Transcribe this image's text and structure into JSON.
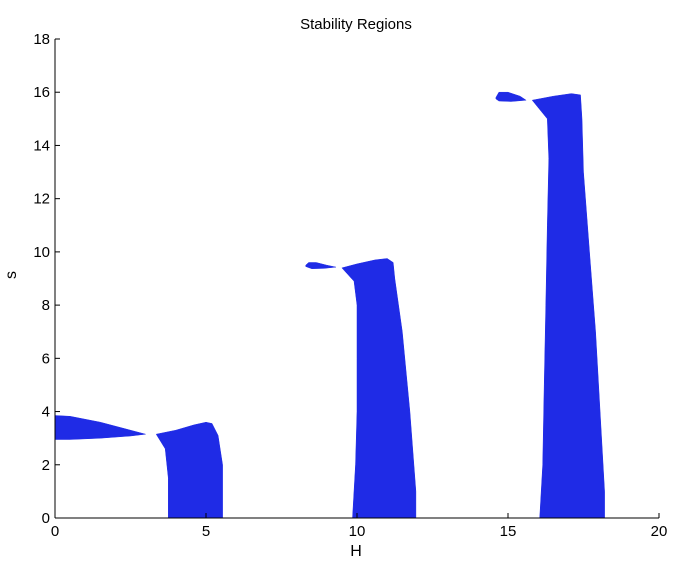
{
  "chart_data": {
    "type": "area",
    "title": "Stability Regions",
    "xlabel": "H",
    "ylabel": "s",
    "xlim": [
      0,
      20
    ],
    "ylim": [
      0,
      18
    ],
    "x_ticks": [
      "0",
      "5",
      "10",
      "15",
      "20"
    ],
    "y_ticks": [
      "0",
      "2",
      "4",
      "6",
      "8",
      "10",
      "12",
      "14",
      "16",
      "18"
    ],
    "grid": false,
    "fill_color": "#1f2be6",
    "regions": [
      {
        "points": [
          [
            0,
            2.95
          ],
          [
            0.5,
            2.95
          ],
          [
            1.5,
            3.0
          ],
          [
            2.5,
            3.08
          ],
          [
            3.0,
            3.15
          ],
          [
            2.5,
            3.3
          ],
          [
            1.5,
            3.6
          ],
          [
            0.5,
            3.82
          ],
          [
            0,
            3.85
          ]
        ]
      },
      {
        "points": [
          [
            3.75,
            0
          ],
          [
            3.75,
            1.5
          ],
          [
            3.65,
            2.6
          ],
          [
            3.35,
            3.15
          ],
          [
            4.0,
            3.3
          ],
          [
            4.6,
            3.5
          ],
          [
            5.0,
            3.6
          ],
          [
            5.2,
            3.55
          ],
          [
            5.4,
            3.1
          ],
          [
            5.55,
            2.0
          ],
          [
            5.55,
            0
          ]
        ]
      },
      {
        "points": [
          [
            9.85,
            0
          ],
          [
            9.95,
            2.0
          ],
          [
            10.0,
            4.0
          ],
          [
            10.0,
            6.0
          ],
          [
            10.0,
            8.0
          ],
          [
            9.9,
            8.9
          ],
          [
            9.5,
            9.4
          ],
          [
            10.0,
            9.55
          ],
          [
            10.6,
            9.7
          ],
          [
            11.0,
            9.75
          ],
          [
            11.2,
            9.6
          ],
          [
            11.25,
            9.0
          ],
          [
            11.5,
            7.0
          ],
          [
            11.75,
            4.0
          ],
          [
            11.95,
            1.0
          ],
          [
            11.95,
            0
          ]
        ]
      },
      {
        "points": [
          [
            8.3,
            9.5
          ],
          [
            8.4,
            9.6
          ],
          [
            8.65,
            9.6
          ],
          [
            9.0,
            9.5
          ],
          [
            9.3,
            9.43
          ],
          [
            8.9,
            9.38
          ],
          [
            8.5,
            9.37
          ],
          [
            8.3,
            9.45
          ]
        ]
      },
      {
        "points": [
          [
            16.05,
            0
          ],
          [
            16.15,
            2.0
          ],
          [
            16.2,
            5.0
          ],
          [
            16.25,
            8.0
          ],
          [
            16.3,
            11.0
          ],
          [
            16.35,
            13.5
          ],
          [
            16.3,
            15.0
          ],
          [
            15.8,
            15.7
          ],
          [
            16.5,
            15.85
          ],
          [
            17.1,
            15.95
          ],
          [
            17.4,
            15.9
          ],
          [
            17.45,
            15.0
          ],
          [
            17.5,
            13.0
          ],
          [
            17.7,
            10.0
          ],
          [
            17.9,
            7.0
          ],
          [
            18.05,
            4.0
          ],
          [
            18.2,
            1.0
          ],
          [
            18.2,
            0
          ]
        ]
      },
      {
        "points": [
          [
            14.6,
            15.8
          ],
          [
            14.7,
            16.0
          ],
          [
            15.0,
            16.0
          ],
          [
            15.4,
            15.85
          ],
          [
            15.6,
            15.7
          ],
          [
            15.1,
            15.65
          ],
          [
            14.7,
            15.67
          ],
          [
            14.6,
            15.75
          ]
        ]
      }
    ]
  }
}
